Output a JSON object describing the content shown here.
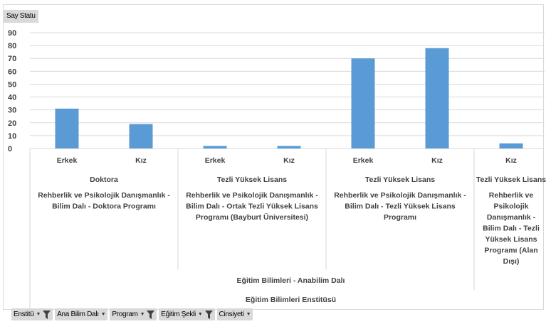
{
  "value_field": "Say Statu",
  "filters": [
    {
      "label": "Enstitü",
      "filtered": true
    },
    {
      "label": "Ana Bilim Dalı",
      "filtered": false
    },
    {
      "label": "Program",
      "filtered": true
    },
    {
      "label": "Eğitim Şekli",
      "filtered": true
    },
    {
      "label": "Cinsiyeti",
      "filtered": false
    }
  ],
  "colors": {
    "bar": "#5b9bd5",
    "grid": "#d9d9d9",
    "text": "#404040"
  },
  "chart_data": {
    "type": "bar",
    "title": "",
    "ylim": [
      0,
      90
    ],
    "yticks": [
      0,
      10,
      20,
      30,
      40,
      50,
      60,
      70,
      80,
      90
    ],
    "grid": true,
    "categories": [
      "Erkek",
      "Kız",
      "Erkek",
      "Kız",
      "Erkek",
      "Kız",
      "Kız"
    ],
    "values": [
      31,
      19,
      2,
      2,
      70,
      78,
      4
    ],
    "groups_level1": [
      {
        "label": "Doktora",
        "span": [
          0,
          1
        ]
      },
      {
        "label": "Tezli Yüksek Lisans",
        "span": [
          2,
          3
        ]
      },
      {
        "label": "Tezli Yüksek Lisans",
        "span": [
          4,
          5
        ]
      },
      {
        "label": "Tezli Yüksek Lisans",
        "span": [
          6,
          6
        ]
      }
    ],
    "groups_level2": [
      {
        "label": [
          "Rehberlik ve Psikolojik Danışmanlık -",
          "Bilim Dalı - Doktora Programı"
        ],
        "span": [
          0,
          1
        ]
      },
      {
        "label": [
          "Rehberlik ve Psikolojik Danışmanlık -",
          "Bilim Dalı - Ortak Tezli Yüksek Lisans",
          "Programı (Bayburt Üniversitesi)"
        ],
        "span": [
          2,
          3
        ]
      },
      {
        "label": [
          "Rehberlik ve Psikolojik Danışmanlık -",
          "Bilim Dalı - Tezli Yüksek Lisans",
          "Programı"
        ],
        "span": [
          4,
          5
        ]
      },
      {
        "label": [
          "Rehberlik ve",
          "Psikolojik",
          "Danışmanlık -",
          "Bilim Dalı - Tezli",
          "Yüksek Lisans",
          "Programı (Alan",
          "Dışı)"
        ],
        "span": [
          6,
          6
        ]
      }
    ],
    "groups_level3": [
      {
        "label": "Eğitim Bilimleri - Anabilim Dalı",
        "span": [
          0,
          6
        ]
      }
    ],
    "groups_level4": [
      {
        "label": "Eğitim Bilimleri Enstitüsü",
        "span": [
          0,
          6
        ]
      }
    ]
  }
}
